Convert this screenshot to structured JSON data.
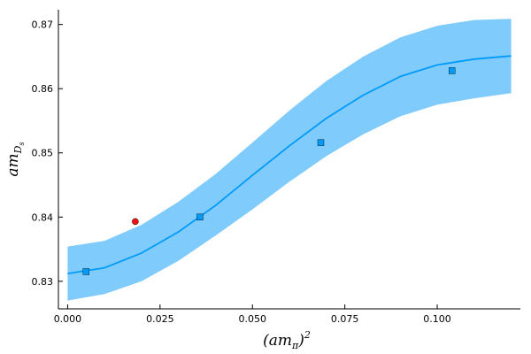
{
  "chart_data": {
    "type": "scatter",
    "title": "",
    "xlabel": {
      "base": "(am",
      "sub": "π",
      "close": ")",
      "sup": "2"
    },
    "ylabel": {
      "base": "am",
      "sub": "D",
      "subsub": "s"
    },
    "xlim": [
      -0.0025,
      0.1225
    ],
    "ylim": [
      0.8257,
      0.8723
    ],
    "xticks": [
      0.0,
      0.025,
      0.05,
      0.075,
      0.1
    ],
    "xtick_labels": [
      "0.000",
      "0.025",
      "0.050",
      "0.075",
      "0.100"
    ],
    "yticks": [
      0.83,
      0.84,
      0.85,
      0.86,
      0.87
    ],
    "ytick_labels": [
      "0.83",
      "0.84",
      "0.85",
      "0.86",
      "0.87"
    ],
    "grid": false,
    "legend": "none",
    "series": [
      {
        "kind": "points",
        "color": "#009af9",
        "marker": "square",
        "x": [
          0.005,
          0.0358,
          0.0685,
          0.104
        ],
        "y": [
          0.8315,
          0.84,
          0.8516,
          0.8628
        ]
      },
      {
        "kind": "points",
        "color": "#e81313",
        "marker": "circle",
        "x": [
          0.0183
        ],
        "y": [
          0.8393
        ]
      },
      {
        "kind": "fit",
        "color": "#009af9",
        "band_color": "#7fcbfc",
        "x": [
          0.0,
          0.01,
          0.02,
          0.03,
          0.04,
          0.05,
          0.06,
          0.07,
          0.08,
          0.09,
          0.1,
          0.11,
          0.12
        ],
        "y": [
          0.8312,
          0.8321,
          0.8344,
          0.8377,
          0.8418,
          0.8465,
          0.8511,
          0.8554,
          0.859,
          0.8619,
          0.8637,
          0.8646,
          0.8651
        ],
        "lower": [
          0.827,
          0.828,
          0.83,
          0.8332,
          0.8371,
          0.8412,
          0.8455,
          0.8495,
          0.8529,
          0.8557,
          0.8575,
          0.8585,
          0.8593
        ],
        "upper": [
          0.8354,
          0.8363,
          0.8388,
          0.8424,
          0.8467,
          0.8516,
          0.8566,
          0.8612,
          0.865,
          0.868,
          0.8698,
          0.8707,
          0.8709
        ]
      }
    ]
  }
}
